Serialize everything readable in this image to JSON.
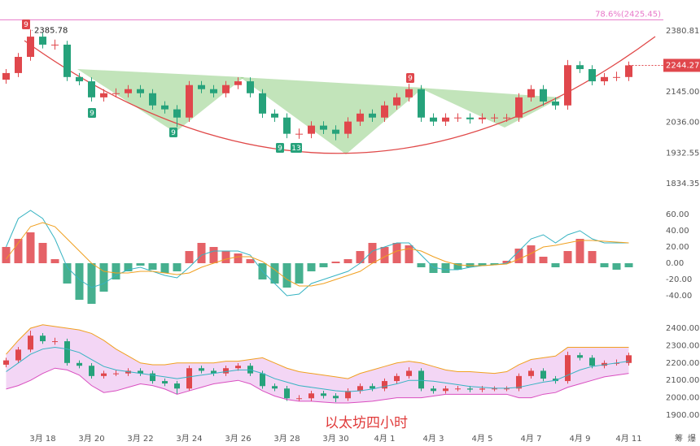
{
  "chart_data": {
    "type": "candlestick",
    "caption": "以太坊四小时",
    "categories": [
      null,
      null,
      null,
      "3月 18",
      null,
      null,
      null,
      "3月 20",
      null,
      null,
      null,
      "3月 22",
      null,
      null,
      null,
      "3月 24",
      null,
      null,
      null,
      "3月 26",
      null,
      null,
      null,
      "3月 28",
      null,
      null,
      null,
      "3月 30",
      null,
      null,
      null,
      "4月 1",
      null,
      null,
      null,
      "4月 3",
      null,
      null,
      null,
      "4月 5",
      null,
      null,
      null,
      "4月 7",
      null,
      null,
      null,
      "4月 9",
      null,
      null,
      null,
      "4月 11"
    ],
    "open": [
      2190,
      2215,
      2277,
      2357,
      2325,
      2325,
      2200,
      2184,
      2125,
      2140,
      2140,
      2155,
      2140,
      2096,
      2082,
      2053,
      2170,
      2155,
      2140,
      2170,
      2184,
      2140,
      2067,
      2053,
      1997,
      1997,
      2025,
      2011,
      1997,
      2039,
      2067,
      2053,
      2096,
      2125,
      2155,
      2053,
      2039,
      2053,
      2053,
      2047,
      2053,
      2053,
      2053,
      2125,
      2155,
      2110,
      2096,
      2245,
      2230,
      2184,
      2200,
      2200
    ],
    "high": [
      2230,
      2292,
      2385.78,
      2372,
      2345,
      2340,
      2215,
      2199,
      2155,
      2158,
      2170,
      2170,
      2155,
      2111,
      2097,
      2185,
      2185,
      2170,
      2185,
      2199,
      2199,
      2155,
      2082,
      2068,
      2015,
      2040,
      2040,
      2026,
      2054,
      2082,
      2082,
      2111,
      2140,
      2175,
      2170,
      2068,
      2068,
      2068,
      2068,
      2068,
      2066,
      2066,
      2140,
      2170,
      2170,
      2125,
      2265,
      2260,
      2245,
      2215,
      2220,
      2259
    ],
    "low": [
      2175,
      2200,
      2262,
      2310,
      2305,
      2185,
      2169,
      2110,
      2110,
      2125,
      2125,
      2125,
      2081,
      2067,
      2020,
      2038,
      2140,
      2125,
      2125,
      2155,
      2125,
      2052,
      2038,
      1982,
      1980,
      1982,
      1996,
      1975,
      1982,
      2024,
      2038,
      2038,
      2081,
      2110,
      2038,
      2024,
      2024,
      2038,
      2032,
      2032,
      2038,
      2038,
      2038,
      2110,
      2095,
      2081,
      2081,
      2215,
      2169,
      2169,
      2185,
      2185
    ],
    "close": [
      2215,
      2277,
      2357,
      2325,
      2325,
      2200,
      2184,
      2125,
      2140,
      2140,
      2155,
      2140,
      2096,
      2082,
      2053,
      2170,
      2155,
      2140,
      2170,
      2184,
      2140,
      2067,
      2053,
      1997,
      1997,
      2025,
      2011,
      1997,
      2039,
      2067,
      2053,
      2096,
      2125,
      2155,
      2053,
      2039,
      2053,
      2053,
      2047,
      2053,
      2053,
      2053,
      2125,
      2155,
      2110,
      2096,
      2245,
      2230,
      2184,
      2200,
      2200,
      2244.27
    ],
    "up_color": "#e0474c",
    "down_color": "#26a27b",
    "log_scale": true,
    "ylim": [
      1799,
      2509
    ],
    "yticks": [
      2380.81,
      {
        "value": 2145,
        "label": "2145.00"
      },
      {
        "value": 2036,
        "label": "2036.00"
      },
      1932.55,
      1834.35
    ],
    "high_label": 2385.78,
    "last_price": 2244.27,
    "fib_level": {
      "value": 2425.45,
      "label": "78.6%(2425.45)",
      "color": "#e879c9"
    },
    "markers": [
      {
        "label": "9",
        "color": "#e0474c"
      },
      {
        "label": "9",
        "color": "#26a27b"
      },
      {
        "label": "9",
        "color": "#26a27b"
      },
      {
        "label": "9",
        "color": "#26a27b"
      },
      {
        "label": "13",
        "color": "#26a27b"
      },
      {
        "label": "9",
        "color": "#e0474c"
      }
    ],
    "macd": {
      "ylim": [
        -56,
        69
      ],
      "yticks": [
        {
          "value": 60,
          "label": "60.00"
        },
        {
          "value": 40,
          "label": "40.00"
        },
        {
          "value": 20,
          "label": "20.00"
        },
        {
          "value": 0,
          "label": "0.00"
        },
        {
          "value": -20,
          "label": "-20.00"
        },
        {
          "value": -40,
          "label": "-40.00"
        }
      ],
      "histogram": [
        20,
        30,
        38,
        25,
        5,
        -25,
        -45,
        -50,
        -35,
        -20,
        -10,
        -3,
        -8,
        -12,
        -10,
        15,
        25,
        20,
        15,
        12,
        5,
        -20,
        -25,
        -30,
        -25,
        -10,
        -5,
        2,
        5,
        15,
        25,
        20,
        25,
        22,
        -5,
        -12,
        -12,
        -8,
        -5,
        -3,
        -2,
        3,
        18,
        22,
        8,
        -5,
        15,
        30,
        15,
        -5,
        -8,
        -5
      ],
      "series": [
        {
          "color": "#36b3c2",
          "values": [
            20,
            55,
            65,
            55,
            30,
            -5,
            -20,
            -30,
            -25,
            -15,
            -8,
            -5,
            -10,
            -15,
            -18,
            -5,
            10,
            15,
            15,
            15,
            10,
            -10,
            -25,
            -40,
            -38,
            -25,
            -20,
            -15,
            -10,
            0,
            15,
            20,
            25,
            25,
            10,
            -5,
            -8,
            -8,
            -5,
            -3,
            -2,
            0,
            15,
            30,
            35,
            25,
            35,
            40,
            30,
            25,
            25,
            25
          ]
        },
        {
          "color": "#f0a020",
          "values": [
            5,
            25,
            45,
            50,
            45,
            30,
            15,
            0,
            -10,
            -12,
            -12,
            -10,
            -10,
            -12,
            -14,
            -12,
            -5,
            0,
            5,
            8,
            8,
            2,
            -8,
            -20,
            -28,
            -28,
            -25,
            -20,
            -15,
            -10,
            0,
            8,
            15,
            18,
            15,
            8,
            2,
            -2,
            -3,
            -3,
            -2,
            -1,
            5,
            12,
            20,
            22,
            25,
            28,
            28,
            27,
            26,
            25
          ]
        }
      ]
    },
    "boll": {
      "ylim": [
        1858,
        2442
      ],
      "yticks": [
        {
          "value": 2400,
          "label": "2400.00"
        },
        {
          "value": 2300,
          "label": "2300.00"
        },
        {
          "value": 2200,
          "label": "2200.00"
        },
        {
          "value": 2100,
          "label": "2100.00"
        },
        {
          "value": 2000,
          "label": "2000.00"
        },
        {
          "value": 1900,
          "label": "1900.00"
        }
      ],
      "fill": "#f3d6f5",
      "series": [
        {
          "color": "#f0a020",
          "values": [
            2250,
            2330,
            2400,
            2420,
            2410,
            2400,
            2390,
            2370,
            2330,
            2280,
            2240,
            2200,
            2190,
            2190,
            2200,
            2200,
            2200,
            2200,
            2210,
            2210,
            2220,
            2230,
            2200,
            2170,
            2150,
            2140,
            2130,
            2120,
            2110,
            2140,
            2160,
            2180,
            2200,
            2210,
            2200,
            2180,
            2160,
            2150,
            2150,
            2145,
            2140,
            2150,
            2190,
            2220,
            2230,
            2240,
            2290,
            2290,
            2290,
            2290,
            2290,
            2290
          ]
        },
        {
          "color": "#36b3c2",
          "values": [
            2150,
            2200,
            2250,
            2280,
            2290,
            2280,
            2260,
            2220,
            2180,
            2160,
            2150,
            2140,
            2130,
            2120,
            2110,
            2120,
            2130,
            2140,
            2150,
            2160,
            2160,
            2140,
            2110,
            2090,
            2070,
            2060,
            2050,
            2040,
            2035,
            2040,
            2050,
            2065,
            2080,
            2100,
            2100,
            2095,
            2085,
            2075,
            2065,
            2060,
            2055,
            2055,
            2060,
            2075,
            2090,
            2100,
            2130,
            2160,
            2180,
            2190,
            2200,
            2210
          ]
        },
        {
          "color": "#d94fc0",
          "values": [
            2050,
            2070,
            2100,
            2140,
            2170,
            2160,
            2130,
            2070,
            2030,
            2040,
            2060,
            2080,
            2070,
            2050,
            2020,
            2040,
            2060,
            2080,
            2090,
            2100,
            2080,
            2040,
            2010,
            1990,
            1980,
            1980,
            1975,
            1970,
            1970,
            1975,
            1980,
            1990,
            2000,
            2000,
            2000,
            2010,
            2020,
            2020,
            2020,
            2020,
            2020,
            2020,
            2000,
            2000,
            2020,
            2030,
            2060,
            2080,
            2100,
            2120,
            2130,
            2140
          ]
        }
      ]
    },
    "toolbar": [
      "筹",
      "爆"
    ]
  }
}
